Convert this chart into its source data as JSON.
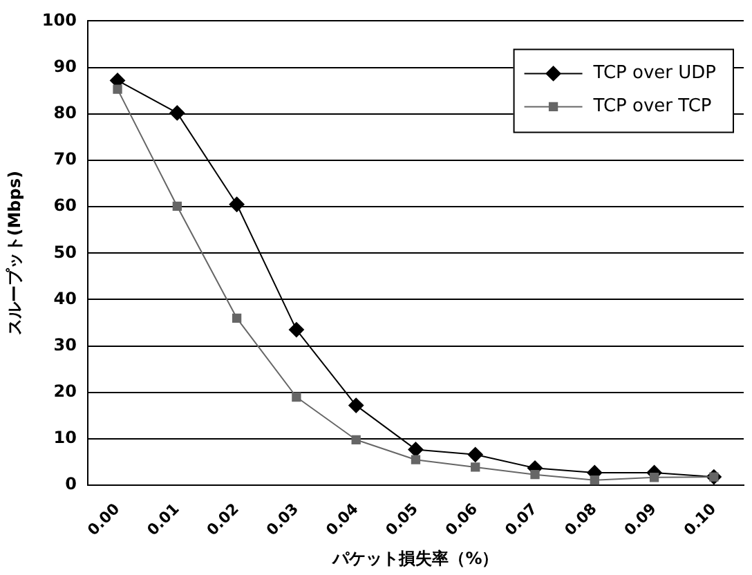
{
  "chart_data": {
    "type": "line",
    "xlabel": "パケット損失率（%）",
    "ylabel": "スループット(Mbps)",
    "categories": [
      "0.00",
      "0.01",
      "0.02",
      "0.03",
      "0.04",
      "0.05",
      "0.06",
      "0.07",
      "0.08",
      "0.09",
      "0.10"
    ],
    "series": [
      {
        "name": "TCP over UDP",
        "color": "#000000",
        "marker": "diamond",
        "values": [
          87.2,
          80.2,
          60.5,
          33.5,
          17.2,
          7.7,
          6.6,
          3.7,
          2.7,
          2.7,
          1.8
        ]
      },
      {
        "name": "TCP over TCP",
        "color": "#666666",
        "marker": "square",
        "values": [
          85.3,
          60.1,
          36,
          19,
          9.8,
          5.5,
          3.9,
          2.3,
          1.1,
          1.7,
          1.8
        ]
      }
    ],
    "ylim": [
      0,
      100
    ],
    "yticks": [
      0,
      10,
      20,
      30,
      40,
      50,
      60,
      70,
      80,
      90,
      100
    ],
    "grid": "y",
    "legend": "top right",
    "line_style": "solid"
  }
}
